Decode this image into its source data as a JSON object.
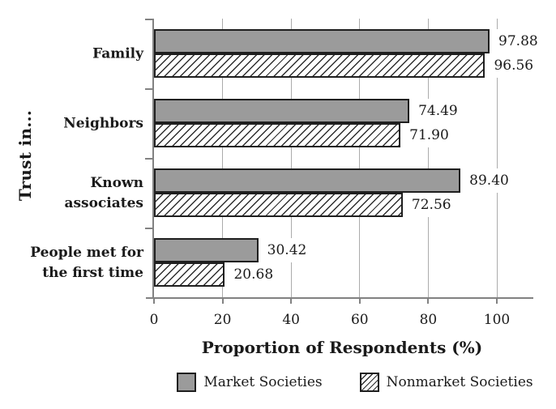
{
  "chart_data": {
    "type": "bar",
    "orientation": "horizontal",
    "title": "",
    "ylabel": "Trust in...",
    "xlabel": "Proportion of Respondents (%)",
    "categories": [
      "Family",
      "Neighbors",
      "Known associates",
      "People met for the first time"
    ],
    "category_lines": [
      [
        "Family"
      ],
      [
        "Neighbors"
      ],
      [
        "Known",
        "associates"
      ],
      [
        "People met for",
        "the first time"
      ]
    ],
    "series": [
      {
        "name": "Market Societies",
        "style": "solid",
        "values": [
          97.88,
          74.49,
          89.4,
          30.42
        ],
        "value_labels": [
          "97.88",
          "74.49",
          "89.40",
          "30.42"
        ]
      },
      {
        "name": "Nonmarket Societies",
        "style": "hatched",
        "values": [
          96.56,
          71.9,
          72.56,
          20.68
        ],
        "value_labels": [
          "96.56",
          "71.90",
          "72.56",
          "20.68"
        ]
      }
    ],
    "xlim": [
      0,
      110
    ],
    "xticks": [
      "0",
      "20",
      "40",
      "60",
      "80",
      "100"
    ],
    "xtick_values": [
      0,
      20,
      40,
      60,
      80,
      100
    ],
    "grid": "vertical",
    "legend_position": "bottom",
    "value_labels_shown": true
  },
  "colors": {
    "bar_fill": "#9b9b9b",
    "bar_border": "#1f1f1f",
    "hatch_line": "#2e2e2e",
    "hatch_bg": "#ffffff",
    "gridline": "#ababab",
    "axis": "#828282",
    "text": "#1a1a1a"
  }
}
